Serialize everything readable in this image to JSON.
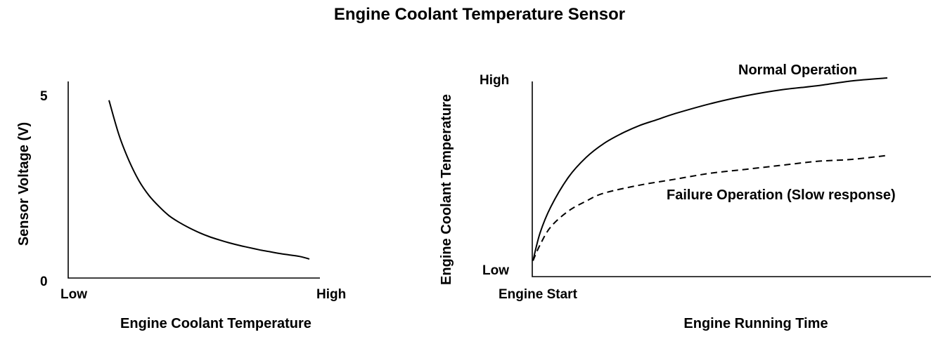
{
  "title": "Engine Coolant Temperature Sensor",
  "chart_data": [
    {
      "type": "line",
      "xlabel": "Engine Coolant Temperature",
      "ylabel": "Sensor Voltage (V)",
      "x_ticks": [
        "Low",
        "High"
      ],
      "y_ticks": [
        "0",
        "5"
      ],
      "ylim": [
        0,
        5
      ],
      "series": [
        {
          "x": [
            0.0,
            0.05,
            0.1,
            0.15,
            0.2,
            0.25,
            0.3,
            0.35,
            0.4,
            0.45,
            0.5,
            0.55,
            0.6,
            0.65,
            0.7,
            0.75,
            0.8,
            0.85,
            0.9,
            0.95,
            1.0
          ],
          "values": [
            4.85,
            3.9,
            3.2,
            2.65,
            2.25,
            1.95,
            1.7,
            1.52,
            1.37,
            1.24,
            1.13,
            1.04,
            0.96,
            0.89,
            0.83,
            0.77,
            0.72,
            0.67,
            0.63,
            0.59,
            0.52
          ]
        }
      ]
    },
    {
      "type": "line",
      "xlabel": "Engine Running Time",
      "ylabel": "Engine Coolant Temperature",
      "x_ticks": [
        "Engine Start"
      ],
      "y_ticks": [
        "Low",
        "High"
      ],
      "ylim": [
        0,
        1
      ],
      "series": [
        {
          "name": "Normal Operation",
          "style": "solid",
          "x": [
            0.0,
            0.02,
            0.05,
            0.1,
            0.15,
            0.2,
            0.25,
            0.3,
            0.35,
            0.4,
            0.5,
            0.6,
            0.7,
            0.8,
            0.9,
            1.0
          ],
          "values": [
            0.08,
            0.22,
            0.35,
            0.5,
            0.6,
            0.67,
            0.72,
            0.76,
            0.79,
            0.82,
            0.87,
            0.91,
            0.94,
            0.96,
            0.985,
            1.0
          ]
        },
        {
          "name": "Failure Operation (Slow response)",
          "style": "dashed",
          "x": [
            0.0,
            0.02,
            0.05,
            0.1,
            0.15,
            0.2,
            0.3,
            0.4,
            0.5,
            0.6,
            0.7,
            0.8,
            0.9,
            1.0
          ],
          "values": [
            0.08,
            0.16,
            0.25,
            0.33,
            0.38,
            0.42,
            0.46,
            0.49,
            0.52,
            0.54,
            0.56,
            0.58,
            0.59,
            0.61
          ]
        }
      ]
    }
  ]
}
